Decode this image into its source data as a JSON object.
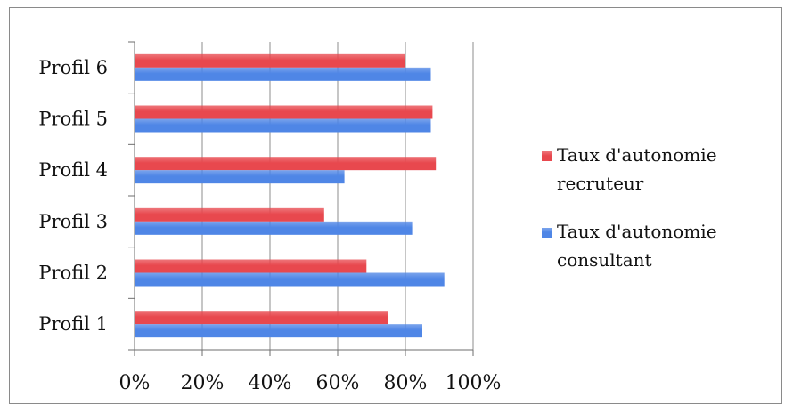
{
  "chart_data": {
    "type": "bar",
    "orientation": "horizontal",
    "categories": [
      "Profil 1",
      "Profil 2",
      "Profil 3",
      "Profil 4",
      "Profil 5",
      "Profil 6"
    ],
    "series": [
      {
        "name": "Taux d'autonomie recruteur",
        "legend_lines": [
          "Taux d'autonomie",
          "recruteur"
        ],
        "color": "#e8484e",
        "values": [
          75,
          68.5,
          56,
          89,
          88,
          80
        ]
      },
      {
        "name": "Taux d'autonomie consultant",
        "legend_lines": [
          "Taux d'autonomie",
          "consultant"
        ],
        "color": "#4f86e6",
        "values": [
          85,
          91.5,
          82,
          62,
          87.5,
          87.5
        ]
      }
    ],
    "xticks": [
      "0%",
      "20%",
      "40%",
      "60%",
      "80%",
      "100%"
    ],
    "xlim": [
      0,
      100
    ],
    "grid": true,
    "legend": "right",
    "title": "",
    "xlabel": "",
    "ylabel": ""
  }
}
